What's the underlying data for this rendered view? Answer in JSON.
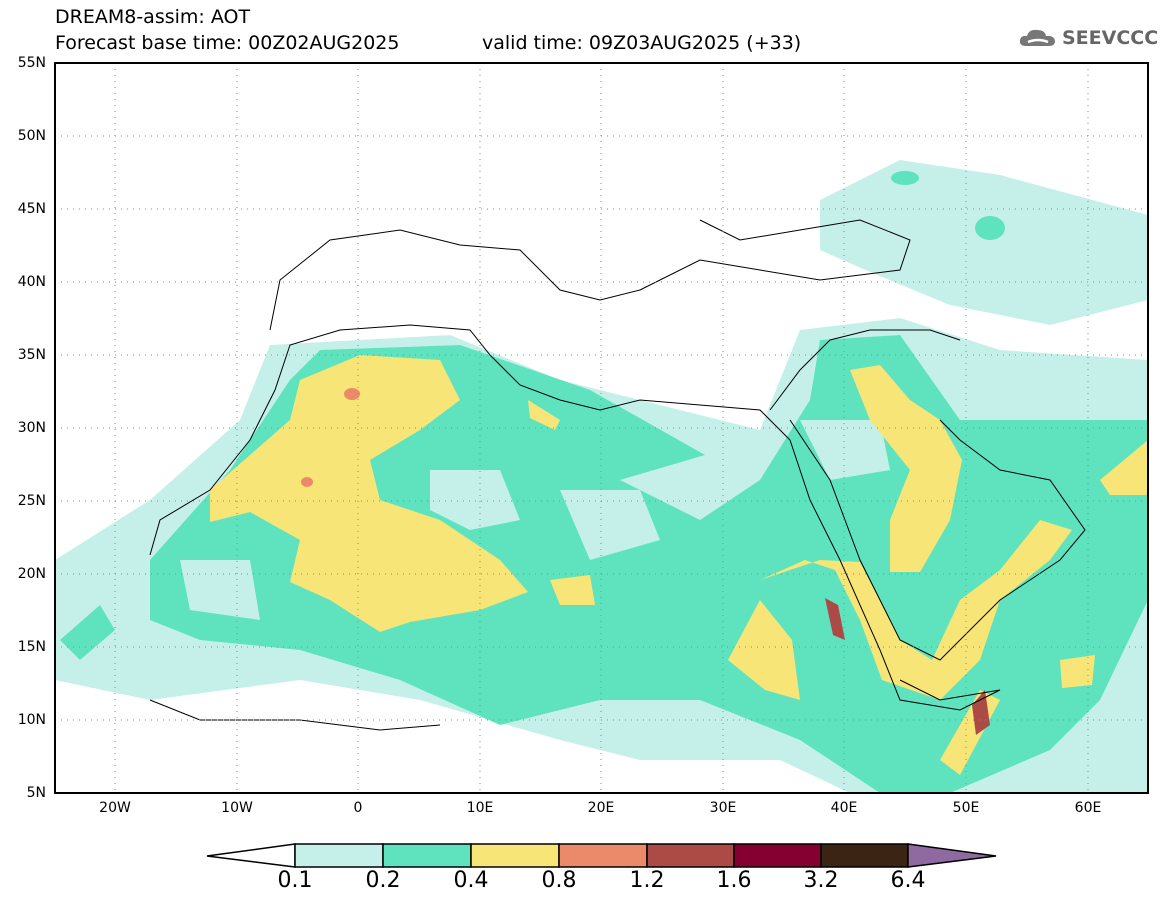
{
  "header": {
    "title": "DREAM8-assim: AOT",
    "base_time": "Forecast base time: 00Z02AUG2025",
    "valid_time": "valid time: 09Z03AUG2025 (+33)"
  },
  "logo": {
    "text": "SEEVCCC",
    "icon": "cloud-icon"
  },
  "map": {
    "lon_range": [
      -25,
      65
    ],
    "lat_range": [
      5,
      55
    ],
    "lat_labels": [
      "55N",
      "50N",
      "45N",
      "40N",
      "35N",
      "30N",
      "25N",
      "20N",
      "15N",
      "10N",
      "5N"
    ],
    "lon_labels": [
      "20W",
      "10W",
      "0",
      "10E",
      "20E",
      "30E",
      "40E",
      "50E",
      "60E"
    ]
  },
  "colorbar": {
    "labels": [
      "0.1",
      "0.2",
      "0.4",
      "0.8",
      "1.2",
      "1.6",
      "3.2",
      "6.4"
    ],
    "colors": [
      "#ffffff",
      "#c5f0ea",
      "#5fe3bf",
      "#f8e577",
      "#ea8a6a",
      "#ac4b45",
      "#850030",
      "#3b2414",
      "#8e6aa0"
    ]
  }
}
